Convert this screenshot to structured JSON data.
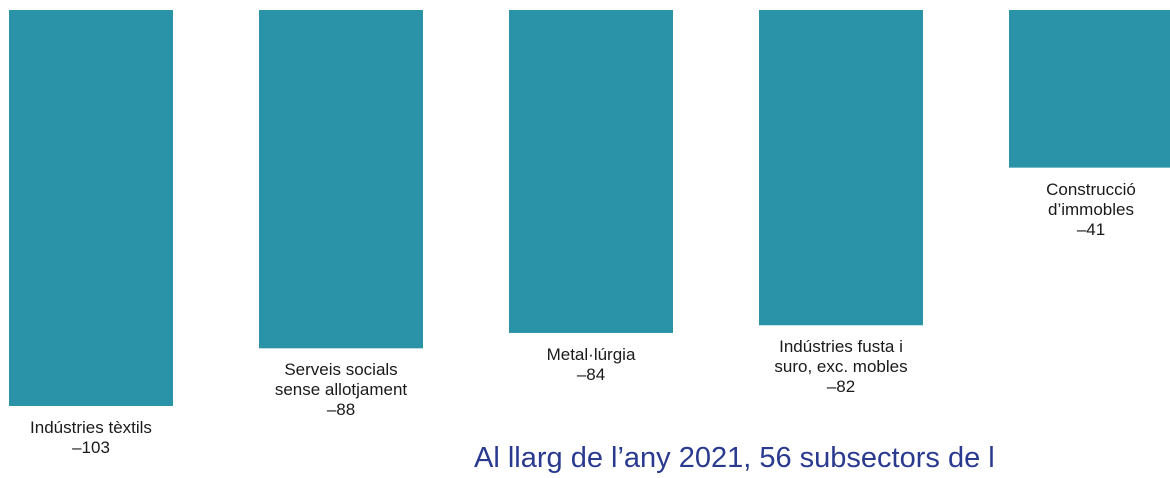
{
  "chart_data": {
    "type": "bar",
    "title": "",
    "xlabel": "",
    "ylabel": "",
    "ylim": [
      0,
      103
    ],
    "bar_color": "#2a93a8",
    "categories": [
      {
        "label_lines": [
          "Indústries tèxtils"
        ],
        "value_label": "–103"
      },
      {
        "label_lines": [
          "Serveis socials",
          "sense allotjament"
        ],
        "value_label": "–88"
      },
      {
        "label_lines": [
          "Metal·lúrgia"
        ],
        "value_label": "–84"
      },
      {
        "label_lines": [
          "Indústries fusta i",
          "suro, exc. mobles"
        ],
        "value_label": "–82"
      },
      {
        "label_lines": [
          "Construcció",
          "d’immobles"
        ],
        "value_label": "–41"
      }
    ],
    "values": [
      -103,
      -88,
      -84,
      -82,
      -41
    ]
  },
  "caption": "Al llarg de l’any 2021, 56 subsectors de l"
}
